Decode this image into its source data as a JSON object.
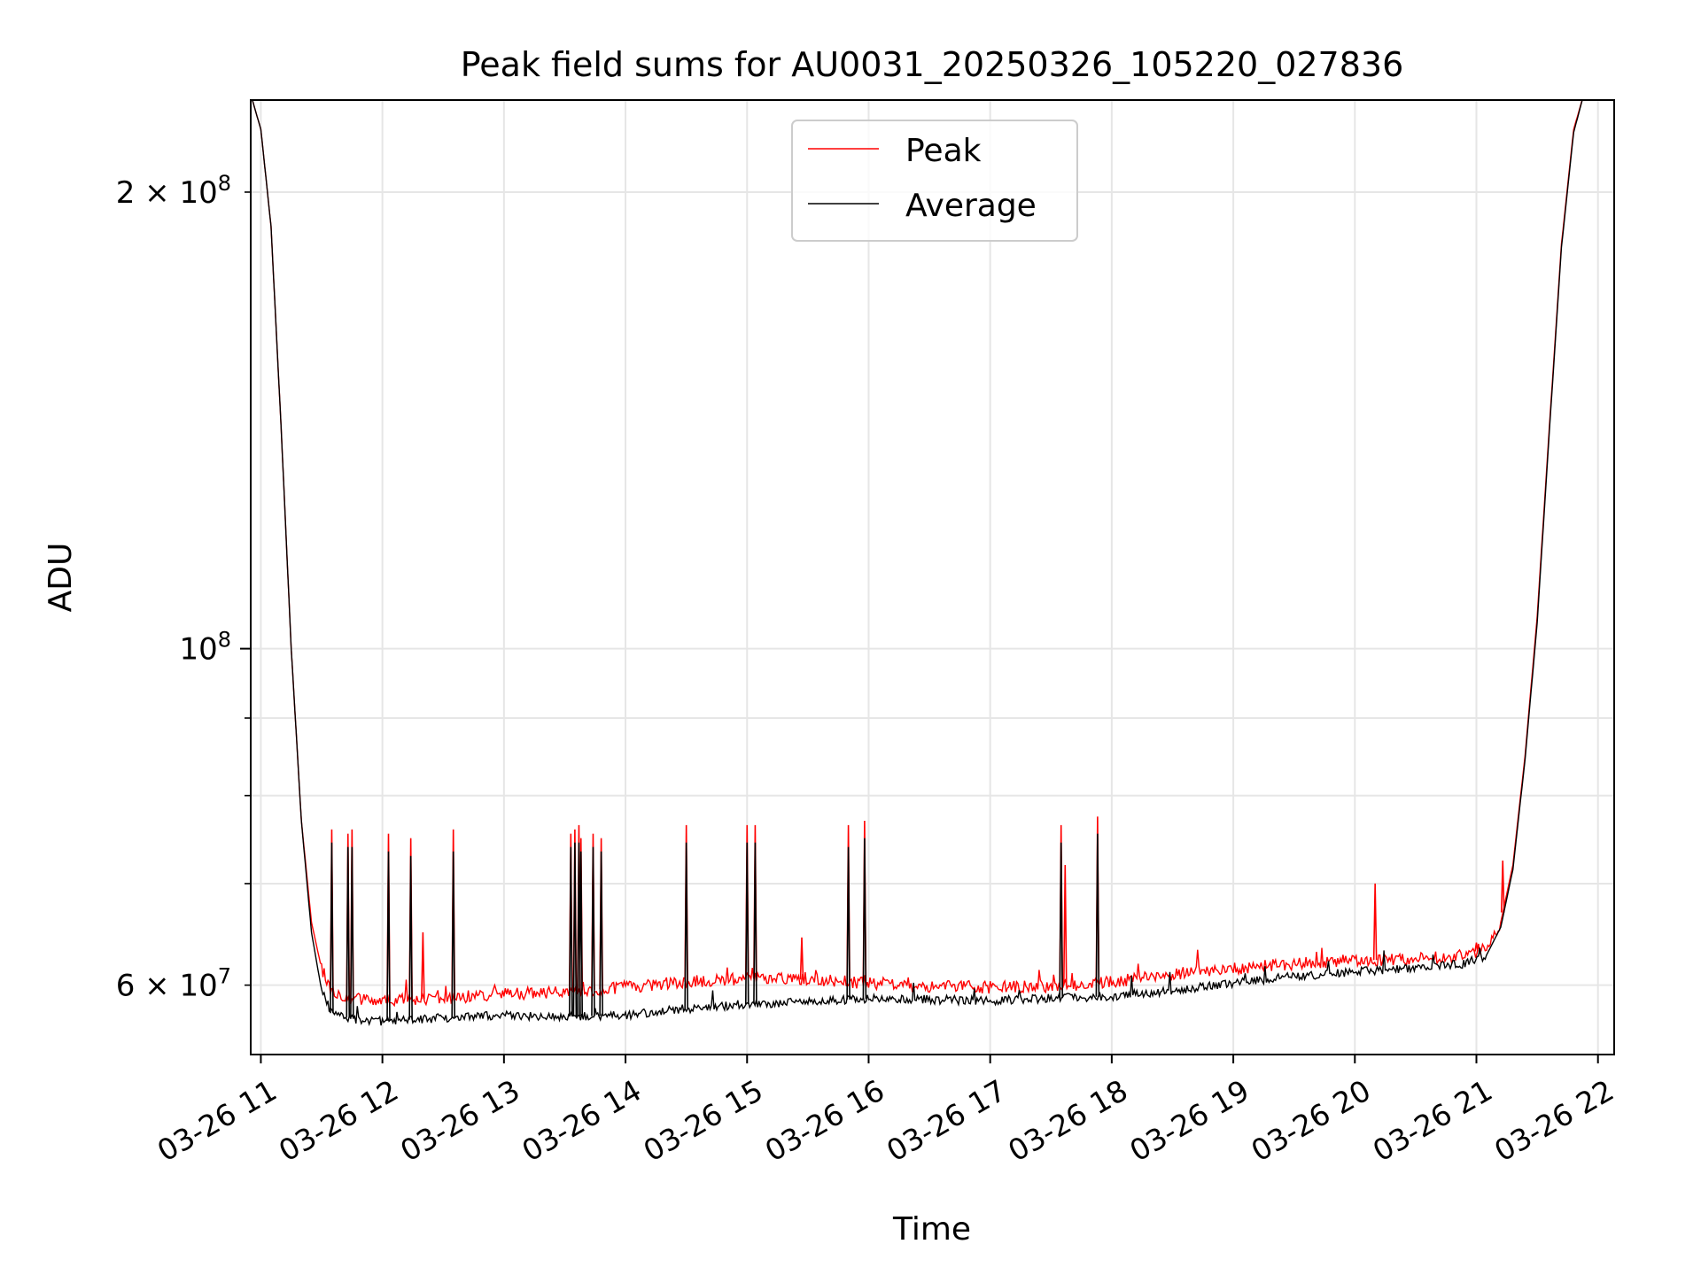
{
  "chart_data": {
    "type": "line",
    "title": "Peak field sums for AU0031_20250326_105220_027836",
    "xlabel": "Time",
    "ylabel": "ADU",
    "x_axis": {
      "kind": "time",
      "range": [
        "2025-03-26T10:55",
        "2025-03-26T22:08"
      ],
      "ticks": [
        "2025-03-26T11:00",
        "2025-03-26T12:00",
        "2025-03-26T13:00",
        "2025-03-26T14:00",
        "2025-03-26T15:00",
        "2025-03-26T16:00",
        "2025-03-26T17:00",
        "2025-03-26T18:00",
        "2025-03-26T19:00",
        "2025-03-26T20:00",
        "2025-03-26T21:00",
        "2025-03-26T22:00"
      ],
      "tick_labels": [
        "03-26 11",
        "03-26 12",
        "03-26 13",
        "03-26 14",
        "03-26 15",
        "03-26 16",
        "03-26 17",
        "03-26 18",
        "03-26 19",
        "03-26 20",
        "03-26 21",
        "03-26 22"
      ]
    },
    "y_axis": {
      "scale": "log",
      "range": [
        54000000,
        230000000
      ],
      "major_ticks": [
        100000000
      ],
      "major_tick_labels": [
        "10^8"
      ],
      "minor_ticks": [
        60000000,
        70000000,
        80000000,
        90000000,
        200000000
      ],
      "labeled_minor_ticks": [
        60000000,
        200000000
      ],
      "labeled_minor_tick_labels": [
        "6 × 10^7",
        "2 × 10^8"
      ]
    },
    "grid": true,
    "legend": {
      "placement": "upper-center"
    },
    "series": [
      {
        "name": "Peak",
        "color": "#ff0000",
        "points": [
          [
            "2025-03-26T10:55",
            232000000
          ],
          [
            "2025-03-26T11:00",
            220000000
          ],
          [
            "2025-03-26T11:05",
            190000000
          ],
          [
            "2025-03-26T11:10",
            140000000
          ],
          [
            "2025-03-26T11:15",
            100000000
          ],
          [
            "2025-03-26T11:20",
            77000000
          ],
          [
            "2025-03-26T11:25",
            66000000
          ],
          [
            "2025-03-26T11:30",
            61500000
          ],
          [
            "2025-03-26T11:35",
            59500000
          ],
          [
            "2025-03-26T11:45",
            58800000
          ],
          [
            "2025-03-26T12:00",
            58600000
          ],
          [
            "2025-03-26T12:30",
            58800000
          ],
          [
            "2025-03-26T13:00",
            59200000
          ],
          [
            "2025-03-26T13:30",
            59400000
          ],
          [
            "2025-03-26T14:00",
            59800000
          ],
          [
            "2025-03-26T14:30",
            60300000
          ],
          [
            "2025-03-26T15:00",
            60600000
          ],
          [
            "2025-03-26T15:30",
            60500000
          ],
          [
            "2025-03-26T16:00",
            60200000
          ],
          [
            "2025-03-26T16:30",
            59900000
          ],
          [
            "2025-03-26T17:00",
            59800000
          ],
          [
            "2025-03-26T17:30",
            59900000
          ],
          [
            "2025-03-26T18:00",
            60300000
          ],
          [
            "2025-03-26T18:30",
            61000000
          ],
          [
            "2025-03-26T19:00",
            61500000
          ],
          [
            "2025-03-26T19:30",
            62000000
          ],
          [
            "2025-03-26T20:00",
            62300000
          ],
          [
            "2025-03-26T20:30",
            62400000
          ],
          [
            "2025-03-26T20:55",
            62800000
          ],
          [
            "2025-03-26T21:05",
            63500000
          ],
          [
            "2025-03-26T21:12",
            66000000
          ],
          [
            "2025-03-26T21:18",
            72000000
          ],
          [
            "2025-03-26T21:24",
            85000000
          ],
          [
            "2025-03-26T21:30",
            105000000
          ],
          [
            "2025-03-26T21:36",
            140000000
          ],
          [
            "2025-03-26T21:42",
            185000000
          ],
          [
            "2025-03-26T21:48",
            220000000
          ],
          [
            "2025-03-26T21:53",
            232000000
          ]
        ],
        "spikes": [
          [
            "2025-03-26T11:35",
            76000000
          ],
          [
            "2025-03-26T11:43",
            75500000
          ],
          [
            "2025-03-26T11:45",
            76000000
          ],
          [
            "2025-03-26T12:03",
            75500000
          ],
          [
            "2025-03-26T12:14",
            75000000
          ],
          [
            "2025-03-26T12:20",
            65000000
          ],
          [
            "2025-03-26T12:35",
            76000000
          ],
          [
            "2025-03-26T13:33",
            75500000
          ],
          [
            "2025-03-26T13:35",
            76000000
          ],
          [
            "2025-03-26T13:37",
            76500000
          ],
          [
            "2025-03-26T13:38",
            75000000
          ],
          [
            "2025-03-26T13:44",
            75500000
          ],
          [
            "2025-03-26T13:48",
            75000000
          ],
          [
            "2025-03-26T14:30",
            76500000
          ],
          [
            "2025-03-26T15:00",
            76500000
          ],
          [
            "2025-03-26T15:04",
            76500000
          ],
          [
            "2025-03-26T15:27",
            64500000
          ],
          [
            "2025-03-26T15:50",
            76500000
          ],
          [
            "2025-03-26T15:58",
            77000000
          ],
          [
            "2025-03-26T17:35",
            76500000
          ],
          [
            "2025-03-26T17:37",
            72000000
          ],
          [
            "2025-03-26T17:53",
            77500000
          ],
          [
            "2025-03-26T20:10",
            70000000
          ],
          [
            "2025-03-26T21:00",
            64000000
          ],
          [
            "2025-03-26T21:13",
            72500000
          ]
        ]
      },
      {
        "name": "Average",
        "color": "#000000",
        "points": [
          [
            "2025-03-26T10:55",
            232000000
          ],
          [
            "2025-03-26T11:00",
            220000000
          ],
          [
            "2025-03-26T11:05",
            190000000
          ],
          [
            "2025-03-26T11:10",
            140000000
          ],
          [
            "2025-03-26T11:15",
            100000000
          ],
          [
            "2025-03-26T11:20",
            77000000
          ],
          [
            "2025-03-26T11:25",
            65000000
          ],
          [
            "2025-03-26T11:30",
            59500000
          ],
          [
            "2025-03-26T11:35",
            57500000
          ],
          [
            "2025-03-26T11:45",
            57000000
          ],
          [
            "2025-03-26T12:00",
            56800000
          ],
          [
            "2025-03-26T12:30",
            57100000
          ],
          [
            "2025-03-26T13:00",
            57300000
          ],
          [
            "2025-03-26T13:30",
            57200000
          ],
          [
            "2025-03-26T14:00",
            57300000
          ],
          [
            "2025-03-26T14:30",
            57900000
          ],
          [
            "2025-03-26T15:00",
            58300000
          ],
          [
            "2025-03-26T15:30",
            58500000
          ],
          [
            "2025-03-26T16:00",
            58800000
          ],
          [
            "2025-03-26T16:30",
            58700000
          ],
          [
            "2025-03-26T17:00",
            58600000
          ],
          [
            "2025-03-26T17:30",
            58800000
          ],
          [
            "2025-03-26T18:00",
            59000000
          ],
          [
            "2025-03-26T18:30",
            59500000
          ],
          [
            "2025-03-26T19:00",
            60200000
          ],
          [
            "2025-03-26T19:30",
            60800000
          ],
          [
            "2025-03-26T20:00",
            61200000
          ],
          [
            "2025-03-26T20:30",
            61600000
          ],
          [
            "2025-03-26T20:55",
            62000000
          ],
          [
            "2025-03-26T21:05",
            62800000
          ],
          [
            "2025-03-26T21:12",
            65500000
          ],
          [
            "2025-03-26T21:18",
            71500000
          ],
          [
            "2025-03-26T21:24",
            84500000
          ],
          [
            "2025-03-26T21:30",
            104000000
          ],
          [
            "2025-03-26T21:36",
            139000000
          ],
          [
            "2025-03-26T21:42",
            184000000
          ],
          [
            "2025-03-26T21:48",
            219000000
          ],
          [
            "2025-03-26T21:53",
            232000000
          ]
        ],
        "spikes": [
          [
            "2025-03-26T11:35",
            74500000
          ],
          [
            "2025-03-26T11:43",
            74000000
          ],
          [
            "2025-03-26T11:45",
            74000000
          ],
          [
            "2025-03-26T12:03",
            73500000
          ],
          [
            "2025-03-26T12:14",
            73000000
          ],
          [
            "2025-03-26T12:35",
            73500000
          ],
          [
            "2025-03-26T13:33",
            74000000
          ],
          [
            "2025-03-26T13:35",
            74500000
          ],
          [
            "2025-03-26T13:37",
            74500000
          ],
          [
            "2025-03-26T13:38",
            73500000
          ],
          [
            "2025-03-26T13:44",
            74000000
          ],
          [
            "2025-03-26T13:48",
            73500000
          ],
          [
            "2025-03-26T14:30",
            74500000
          ],
          [
            "2025-03-26T15:00",
            74500000
          ],
          [
            "2025-03-26T15:04",
            74500000
          ],
          [
            "2025-03-26T15:50",
            74000000
          ],
          [
            "2025-03-26T15:58",
            75000000
          ],
          [
            "2025-03-26T17:35",
            74500000
          ],
          [
            "2025-03-26T17:53",
            75500000
          ]
        ]
      }
    ]
  }
}
